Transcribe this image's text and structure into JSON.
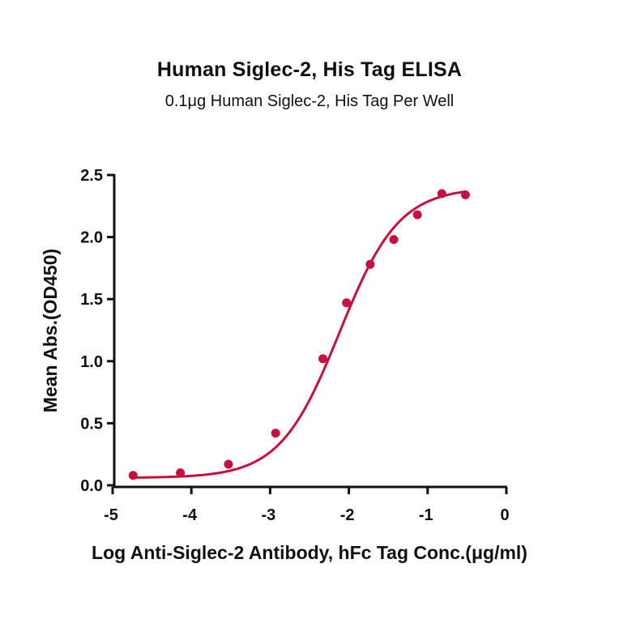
{
  "header": {
    "title": "Human Siglec-2, His Tag ELISA",
    "subtitle": "0.1μg Human Siglec-2, His Tag Per Well"
  },
  "chart_data": {
    "type": "scatter",
    "title": "Human Siglec-2, His Tag ELISA",
    "subtitle": "0.1μg Human Siglec-2, His Tag Per Well",
    "xlabel": "Log Anti-Siglec-2 Antibody, hFc Tag Conc.(μg/ml)",
    "ylabel": "Mean Abs.(OD450)",
    "xlim": [
      -5,
      0
    ],
    "ylim": [
      0,
      2.5
    ],
    "x_ticks": [
      "-5",
      "-4",
      "-3",
      "-2",
      "-1",
      "0"
    ],
    "y_ticks": [
      "0.0",
      "0.5",
      "1.0",
      "1.5",
      "2.0",
      "2.5"
    ],
    "grid": false,
    "legend": null,
    "fit": "four-parameter logistic (sigmoidal) curve",
    "color": "#C8103E",
    "series": [
      {
        "name": "Human Siglec-2, His Tag",
        "x": [
          -4.74,
          -4.14,
          -3.53,
          -2.93,
          -2.33,
          -2.03,
          -1.73,
          -1.43,
          -1.13,
          -0.82,
          -0.52
        ],
        "y": [
          0.08,
          0.1,
          0.17,
          0.42,
          1.02,
          1.47,
          1.78,
          1.98,
          2.18,
          2.35,
          2.34
        ]
      }
    ]
  }
}
